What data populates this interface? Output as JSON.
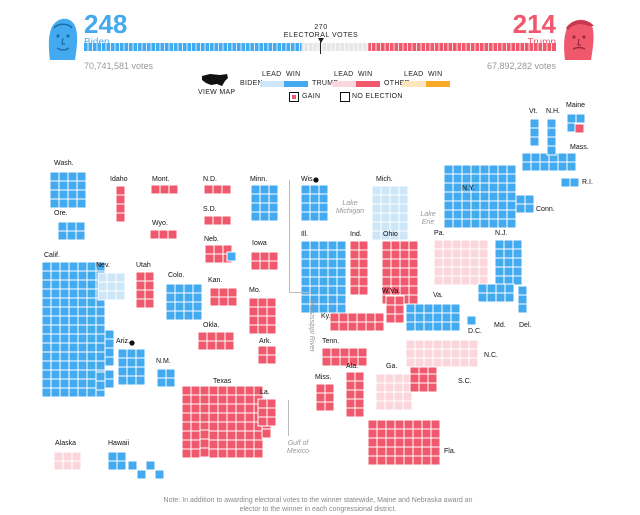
{
  "header": {
    "biden": {
      "electoral_votes": "248",
      "name": "Biden",
      "popular_votes": "70,741,581 votes"
    },
    "trump": {
      "electoral_votes": "214",
      "name": "Trump",
      "popular_votes": "67,892,282 votes"
    },
    "threshold": {
      "value": "270",
      "label": "ELECTORAL VOTES"
    },
    "progress": {
      "total": 538,
      "biden": 248,
      "trump": 214
    }
  },
  "legend": {
    "biden_label": "BIDEN",
    "trump_label": "TRUMP",
    "other_label": "OTHER",
    "lead_label": "LEAD",
    "win_label": "WIN",
    "view_map_label": "VIEW MAP",
    "gain_label": "GAIN",
    "no_election_label": "NO ELECTION"
  },
  "colors": {
    "biden_win": "#44aaf0",
    "biden_lead": "#cde6f8",
    "trump_win": "#f0586e",
    "trump_lead": "#fbd7dd",
    "other_lead": "#fde6bd",
    "other_win": "#f7a92a",
    "pending": "#e6e6e6"
  },
  "states": [
    {
      "abbr": "Wash.",
      "status": "biden_win"
    },
    {
      "abbr": "Ore.",
      "status": "biden_win"
    },
    {
      "abbr": "Calif.",
      "status": "biden_win"
    },
    {
      "abbr": "Idaho",
      "status": "trump_win"
    },
    {
      "abbr": "Nev.",
      "status": "biden_lead"
    },
    {
      "abbr": "Utah",
      "status": "trump_win"
    },
    {
      "abbr": "Mont.",
      "status": "trump_win"
    },
    {
      "abbr": "Wyo.",
      "status": "trump_win"
    },
    {
      "abbr": "Colo.",
      "status": "biden_win"
    },
    {
      "abbr": "Ariz.",
      "status": "biden_win"
    },
    {
      "abbr": "N.M.",
      "status": "biden_win"
    },
    {
      "abbr": "N.D.",
      "status": "trump_win"
    },
    {
      "abbr": "S.D.",
      "status": "trump_win"
    },
    {
      "abbr": "Neb.",
      "status": "trump_win"
    },
    {
      "abbr": "Kan.",
      "status": "trump_win"
    },
    {
      "abbr": "Okla.",
      "status": "trump_win"
    },
    {
      "abbr": "Texas",
      "status": "trump_win"
    },
    {
      "abbr": "Minn.",
      "status": "biden_win"
    },
    {
      "abbr": "Iowa",
      "status": "trump_win"
    },
    {
      "abbr": "Mo.",
      "status": "trump_win"
    },
    {
      "abbr": "Ark.",
      "status": "trump_win"
    },
    {
      "abbr": "La.",
      "status": "trump_win"
    },
    {
      "abbr": "Wis.",
      "status": "biden_win"
    },
    {
      "abbr": "Ill.",
      "status": "biden_win"
    },
    {
      "abbr": "Mich.",
      "status": "biden_lead"
    },
    {
      "abbr": "Ind.",
      "status": "trump_win"
    },
    {
      "abbr": "Ohio",
      "status": "trump_win"
    },
    {
      "abbr": "Ky.",
      "status": "trump_win"
    },
    {
      "abbr": "Tenn.",
      "status": "trump_win"
    },
    {
      "abbr": "Miss.",
      "status": "trump_win"
    },
    {
      "abbr": "Ala.",
      "status": "trump_win"
    },
    {
      "abbr": "Ga.",
      "status": "trump_lead"
    },
    {
      "abbr": "Fla.",
      "status": "trump_win"
    },
    {
      "abbr": "S.C.",
      "status": "trump_win"
    },
    {
      "abbr": "N.C.",
      "status": "trump_lead"
    },
    {
      "abbr": "Va.",
      "status": "biden_win"
    },
    {
      "abbr": "W.Va.",
      "status": "trump_win"
    },
    {
      "abbr": "Pa.",
      "status": "trump_lead"
    },
    {
      "abbr": "N.Y.",
      "status": "biden_win"
    },
    {
      "abbr": "N.J.",
      "status": "biden_win"
    },
    {
      "abbr": "Md.",
      "status": "biden_win"
    },
    {
      "abbr": "Del.",
      "status": "biden_win"
    },
    {
      "abbr": "D.C.",
      "status": "biden_win"
    },
    {
      "abbr": "Conn.",
      "status": "biden_win"
    },
    {
      "abbr": "R.I.",
      "status": "biden_win"
    },
    {
      "abbr": "Mass.",
      "status": "biden_win"
    },
    {
      "abbr": "Vt.",
      "status": "biden_win"
    },
    {
      "abbr": "N.H.",
      "status": "biden_win"
    },
    {
      "abbr": "Maine",
      "status": "biden_win"
    },
    {
      "abbr": "Alaska",
      "status": "trump_lead"
    },
    {
      "abbr": "Hawaii",
      "status": "biden_win"
    }
  ],
  "water_labels": {
    "lake_michigan": "Lake Michigan",
    "lake_erie": "Lake Erie",
    "mississippi": "Mississippi River",
    "gulf": "Gulf of Mexico"
  },
  "note": "Note: In addition to awarding electoral votes to the winner statewide, Maine and Nebraska award an elector to the winner in each congressional district."
}
